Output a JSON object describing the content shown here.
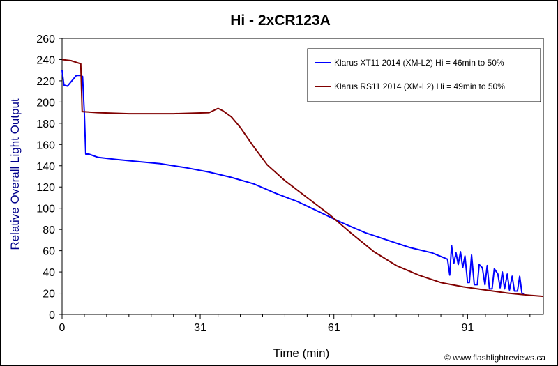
{
  "chart_data": {
    "type": "line",
    "title": "Hi - 2xCR123A",
    "xlabel": "Time (min)",
    "ylabel": "Relative Overall Light Output",
    "credit": "© www.flashlightreviews.ca",
    "xlim": [
      0,
      108
    ],
    "ylim": [
      0,
      260
    ],
    "x_ticks": [
      0,
      31,
      61,
      91
    ],
    "y_ticks": [
      0,
      20,
      40,
      60,
      80,
      100,
      120,
      140,
      160,
      180,
      200,
      220,
      240,
      260
    ],
    "grid": false,
    "legend_position": "top-right",
    "series": [
      {
        "name": "Klarus XT11 2014 (XM-L2) Hi = 46min to 50%",
        "color": "#0000ff",
        "points": [
          [
            0,
            230
          ],
          [
            0.4,
            216
          ],
          [
            1.2,
            215
          ],
          [
            2.2,
            220
          ],
          [
            3.2,
            225
          ],
          [
            4.2,
            225
          ],
          [
            4.6,
            224
          ],
          [
            5.0,
            190
          ],
          [
            5.3,
            151
          ],
          [
            6,
            151
          ],
          [
            8,
            148
          ],
          [
            12,
            146
          ],
          [
            17,
            144
          ],
          [
            22,
            142
          ],
          [
            28,
            138
          ],
          [
            33,
            134
          ],
          [
            38,
            129
          ],
          [
            43,
            123
          ],
          [
            48,
            114
          ],
          [
            53,
            106
          ],
          [
            58,
            96
          ],
          [
            63,
            86
          ],
          [
            68,
            77
          ],
          [
            73,
            70
          ],
          [
            78,
            63
          ],
          [
            83,
            58
          ],
          [
            86.5,
            52
          ],
          [
            87,
            37
          ],
          [
            87.4,
            65
          ],
          [
            87.9,
            48
          ],
          [
            88.4,
            58
          ],
          [
            88.9,
            47
          ],
          [
            89.4,
            59
          ],
          [
            89.9,
            44
          ],
          [
            90.4,
            55
          ],
          [
            91.0,
            30
          ],
          [
            91.4,
            30
          ],
          [
            91.9,
            56
          ],
          [
            92.5,
            28
          ],
          [
            93.2,
            28
          ],
          [
            93.6,
            47
          ],
          [
            94.3,
            44
          ],
          [
            94.9,
            28
          ],
          [
            95.4,
            46
          ],
          [
            95.9,
            24
          ],
          [
            96.5,
            24
          ],
          [
            97.0,
            43
          ],
          [
            97.8,
            38
          ],
          [
            98.3,
            25
          ],
          [
            98.8,
            40
          ],
          [
            99.3,
            24
          ],
          [
            99.9,
            38
          ],
          [
            100.4,
            23
          ],
          [
            101.0,
            36
          ],
          [
            101.5,
            22
          ],
          [
            102.2,
            22
          ],
          [
            102.7,
            36
          ],
          [
            103.2,
            20
          ],
          [
            103.6,
            19
          ]
        ]
      },
      {
        "name": "Klarus RS11 2014 (XM-L2) Hi = 49min to 50%",
        "color": "#800000",
        "points": [
          [
            0,
            240
          ],
          [
            2,
            239
          ],
          [
            4.2,
            236
          ],
          [
            4.5,
            191
          ],
          [
            8,
            190
          ],
          [
            15,
            189
          ],
          [
            25,
            189
          ],
          [
            33,
            190
          ],
          [
            34.5,
            193
          ],
          [
            35,
            194
          ],
          [
            36,
            192
          ],
          [
            38,
            186
          ],
          [
            40,
            176
          ],
          [
            43,
            158
          ],
          [
            46,
            141
          ],
          [
            50,
            126
          ],
          [
            55,
            110
          ],
          [
            60,
            94
          ],
          [
            65,
            76
          ],
          [
            70,
            59
          ],
          [
            75,
            46
          ],
          [
            80,
            37
          ],
          [
            85,
            30
          ],
          [
            90,
            26
          ],
          [
            95,
            23
          ],
          [
            100,
            20
          ],
          [
            105,
            18
          ],
          [
            108,
            17
          ]
        ]
      }
    ]
  }
}
